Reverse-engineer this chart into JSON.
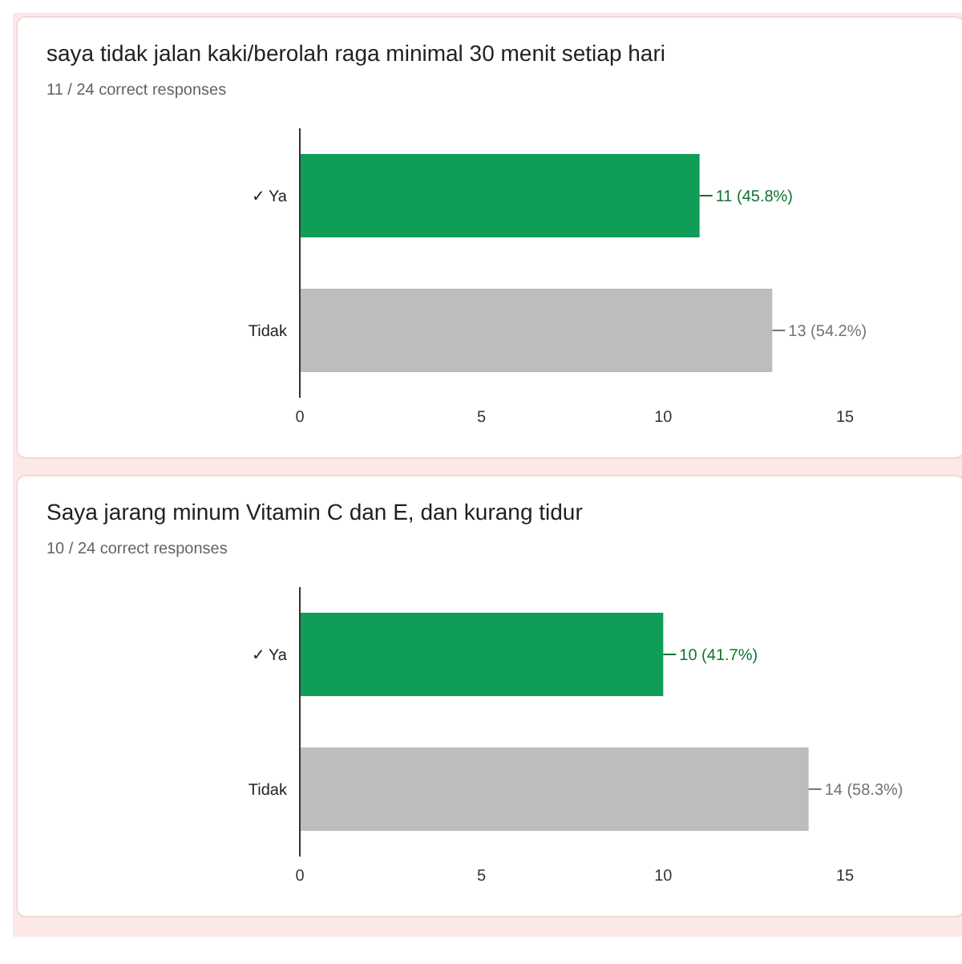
{
  "chart_data": [
    {
      "type": "bar",
      "orientation": "horizontal",
      "title": "saya tidak jalan kaki/berolah raga minimal 30 menit setiap hari",
      "subtitle": "11 / 24 correct responses",
      "categories": [
        "✓ Ya",
        "Tidak"
      ],
      "values": [
        11,
        13
      ],
      "colors": [
        "#0f9d58",
        "#bdbdbd"
      ],
      "value_labels": [
        "11 (45.8%)",
        "13 (54.2%)"
      ],
      "xlim": [
        0,
        15
      ],
      "xticks": [
        0,
        5,
        10,
        15
      ]
    },
    {
      "type": "bar",
      "orientation": "horizontal",
      "title": "Saya jarang minum Vitamin C dan E, dan kurang tidur",
      "subtitle": "10 / 24 correct responses",
      "categories": [
        "✓ Ya",
        "Tidak"
      ],
      "values": [
        10,
        14
      ],
      "colors": [
        "#0f9d58",
        "#bdbdbd"
      ],
      "value_labels": [
        "10 (41.7%)",
        "14 (58.3%)"
      ],
      "xlim": [
        0,
        15
      ],
      "xticks": [
        0,
        5,
        10,
        15
      ]
    }
  ]
}
